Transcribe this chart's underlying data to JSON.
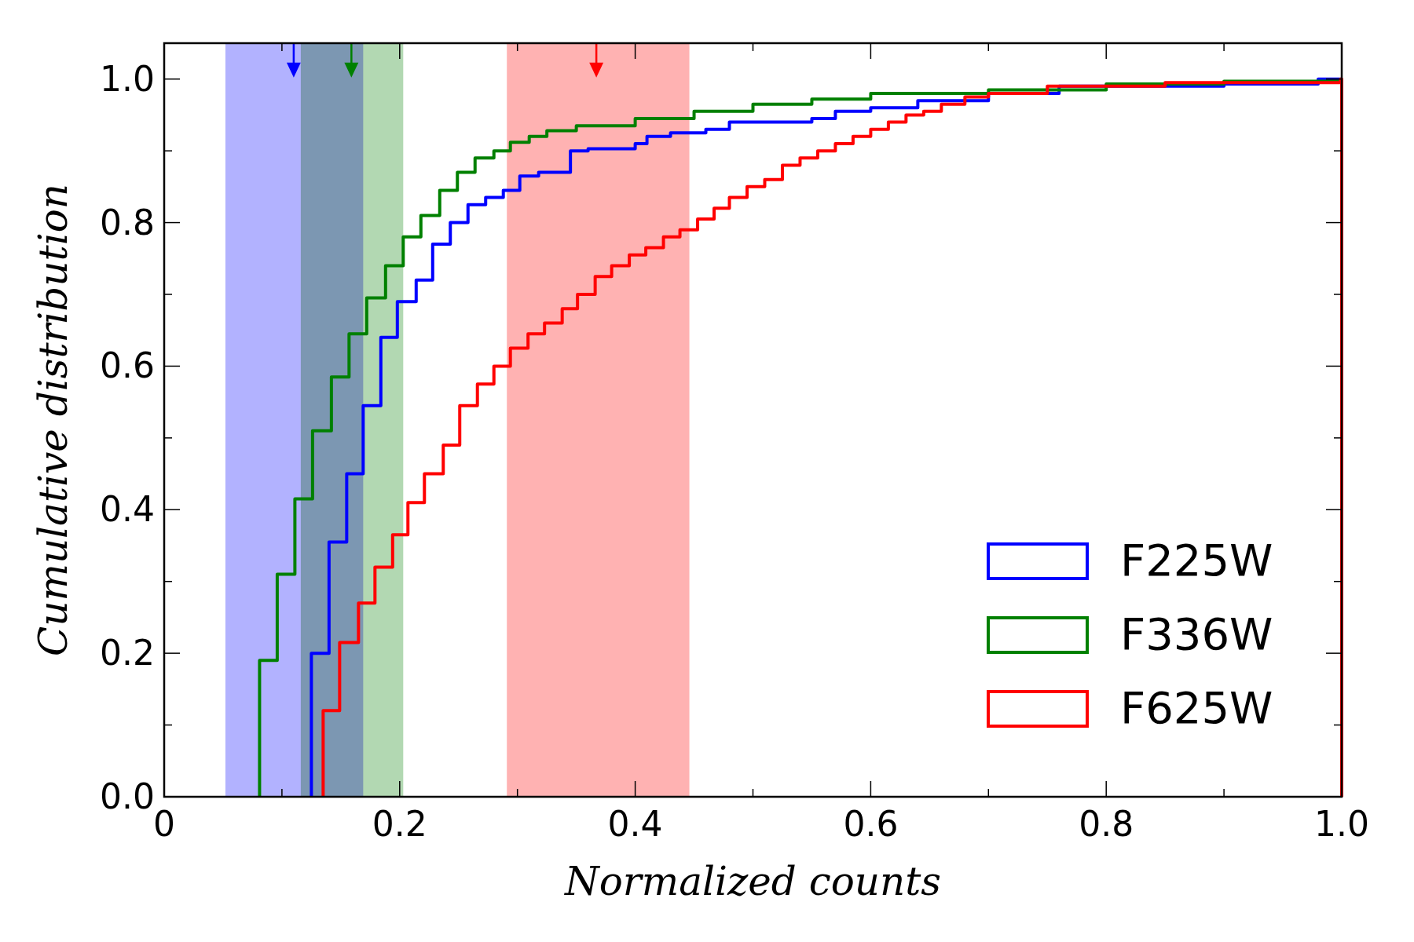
{
  "chart_data": {
    "type": "step",
    "xlabel": "Normalized counts",
    "ylabel": "Cumulative distribution",
    "xlim": [
      0,
      1
    ],
    "ylim": [
      0,
      1.05
    ],
    "xticks": [
      0,
      {
        "value": 0.1,
        "label": null
      },
      {
        "value": 0.2,
        "label": "0.2"
      },
      {
        "value": 0.3,
        "label": null
      },
      {
        "value": 0.4,
        "label": "0.4"
      },
      {
        "value": 0.5,
        "label": null
      },
      {
        "value": 0.6,
        "label": "0.6"
      },
      {
        "value": 0.7,
        "label": null
      },
      {
        "value": 0.8,
        "label": "0.8"
      },
      {
        "value": 0.9,
        "label": null
      },
      {
        "value": 1,
        "label": "1.0"
      }
    ],
    "yticks": [
      {
        "value": 0,
        "label": "0.0"
      },
      {
        "value": 0.1,
        "label": null
      },
      {
        "value": 0.2,
        "label": "0.2"
      },
      {
        "value": 0.3,
        "label": null
      },
      {
        "value": 0.4,
        "label": "0.4"
      },
      {
        "value": 0.5,
        "label": null
      },
      {
        "value": 0.6,
        "label": "0.6"
      },
      {
        "value": 0.7,
        "label": null
      },
      {
        "value": 0.8,
        "label": "0.8"
      },
      {
        "value": 0.9,
        "label": null
      },
      {
        "value": 1,
        "label": "1.0"
      }
    ],
    "grid": false,
    "legend": "bottom right",
    "line_style": "solid",
    "marker": "none",
    "bands": [
      {
        "axis": "x",
        "from": 0.052,
        "to": 0.169,
        "color": "#b2b2ff"
      },
      {
        "axis": "x",
        "from": 0.116,
        "to": 0.203,
        "color": "#b2d8b2"
      },
      {
        "axis": "x",
        "from": 0.291,
        "to": 0.446,
        "color": "#ffb2b2"
      }
    ],
    "series": [
      {
        "type": "scatter",
        "marker": "triangle",
        "x": [
          0.11,
          0.159,
          0.367
        ],
        "values": [
          1.014,
          1.014,
          1.014
        ],
        "colors": [
          "#0000ff",
          "#008000",
          "#ff0000"
        ]
      },
      {
        "name": "F225W",
        "color": "#0000ff",
        "x": [
          0.125,
          0.125,
          0.14,
          0.155,
          0.169,
          0.184,
          0.198,
          0.214,
          0.228,
          0.243,
          0.258,
          0.273,
          0.288,
          0.302,
          0.318,
          0.345,
          0.36,
          0.4,
          0.41,
          0.43,
          0.46,
          0.48,
          0.55,
          0.57,
          0.6,
          0.64,
          0.7,
          0.76,
          0.9,
          0.98,
          1.0
        ],
        "values": [
          0,
          0.2,
          0.355,
          0.45,
          0.545,
          0.64,
          0.69,
          0.72,
          0.77,
          0.8,
          0.825,
          0.835,
          0.845,
          0.865,
          0.87,
          0.9,
          0.903,
          0.91,
          0.92,
          0.925,
          0.93,
          0.94,
          0.945,
          0.955,
          0.96,
          0.97,
          0.98,
          0.99,
          0.993,
          1.0,
          1.0
        ]
      },
      {
        "name": "F336W",
        "color": "#008000",
        "x": [
          0.081,
          0.081,
          0.096,
          0.111,
          0.126,
          0.142,
          0.157,
          0.172,
          0.188,
          0.203,
          0.218,
          0.234,
          0.249,
          0.264,
          0.28,
          0.294,
          0.31,
          0.325,
          0.35,
          0.4,
          0.45,
          0.5,
          0.55,
          0.6,
          0.7,
          0.8,
          0.9,
          1.0
        ],
        "values": [
          0,
          0.19,
          0.31,
          0.415,
          0.51,
          0.585,
          0.645,
          0.695,
          0.74,
          0.78,
          0.81,
          0.845,
          0.87,
          0.89,
          0.9,
          0.912,
          0.92,
          0.928,
          0.935,
          0.945,
          0.955,
          0.965,
          0.972,
          0.98,
          0.985,
          0.993,
          0.997,
          1.0
        ]
      },
      {
        "name": "F625W",
        "color": "#ff0000",
        "x": [
          0.135,
          0.135,
          0.149,
          0.165,
          0.179,
          0.194,
          0.207,
          0.221,
          0.237,
          0.251,
          0.266,
          0.28,
          0.294,
          0.309,
          0.323,
          0.338,
          0.351,
          0.366,
          0.38,
          0.395,
          0.409,
          0.424,
          0.438,
          0.453,
          0.467,
          0.48,
          0.495,
          0.51,
          0.525,
          0.54,
          0.555,
          0.57,
          0.585,
          0.6,
          0.615,
          0.63,
          0.645,
          0.66,
          0.68,
          0.7,
          0.75,
          0.85,
          0.999,
          1.0
        ],
        "values": [
          0,
          0.12,
          0.215,
          0.27,
          0.32,
          0.365,
          0.41,
          0.45,
          0.49,
          0.545,
          0.575,
          0.6,
          0.625,
          0.645,
          0.66,
          0.68,
          0.7,
          0.725,
          0.74,
          0.755,
          0.765,
          0.78,
          0.79,
          0.805,
          0.82,
          0.835,
          0.85,
          0.86,
          0.88,
          0.89,
          0.9,
          0.91,
          0.92,
          0.93,
          0.94,
          0.95,
          0.955,
          0.965,
          0.975,
          0.98,
          0.99,
          0.995,
          1.0,
          0
        ]
      }
    ]
  }
}
